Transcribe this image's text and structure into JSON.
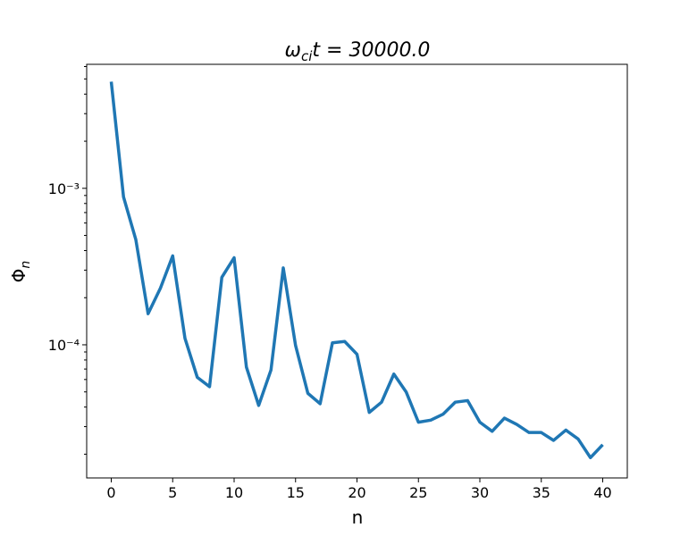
{
  "chart_data": {
    "type": "line",
    "title": {
      "symbol": "ω",
      "subscript": "ci",
      "rest": "t = 30000.0"
    },
    "x_label": "n",
    "y_label": {
      "symbol": "Φ",
      "subscript": "n"
    },
    "x": [
      0,
      1,
      2,
      3,
      4,
      5,
      6,
      7,
      8,
      9,
      10,
      11,
      12,
      13,
      14,
      15,
      16,
      17,
      18,
      19,
      20,
      21,
      22,
      23,
      24,
      25,
      26,
      27,
      28,
      29,
      30,
      31,
      32,
      33,
      34,
      35,
      36,
      37,
      38,
      39,
      40
    ],
    "series": [
      {
        "name": "Φn",
        "color": "#1f77b4",
        "values": [
          0.0048,
          0.00088,
          0.00047,
          0.000158,
          0.00023,
          0.00037,
          0.00011,
          6.2e-05,
          5.4e-05,
          0.00027,
          0.00036,
          7.2e-05,
          4.1e-05,
          6.9e-05,
          0.00031,
          9.9e-05,
          4.9e-05,
          4.2e-05,
          0.000103,
          0.000105,
          8.7e-05,
          3.7e-05,
          4.3e-05,
          6.5e-05,
          5e-05,
          3.2e-05,
          3.3e-05,
          3.6e-05,
          4.3e-05,
          4.4e-05,
          3.2e-05,
          2.8e-05,
          3.4e-05,
          3.1e-05,
          2.75e-05,
          2.75e-05,
          2.45e-05,
          2.85e-05,
          2.5e-05,
          1.9e-05,
          2.3e-05
        ]
      }
    ],
    "xlim": [
      -2,
      42
    ],
    "xticks": [
      0,
      5,
      10,
      15,
      20,
      25,
      30,
      35,
      40
    ],
    "ylim": [
      1.41e-05,
      0.0062
    ],
    "yscale": "log",
    "yticks": [
      {
        "value": 0.0001,
        "label": "10⁻⁴"
      },
      {
        "value": 0.001,
        "label": "10⁻³"
      }
    ],
    "yminorticks": [
      2e-05,
      3e-05,
      4e-05,
      5e-05,
      6e-05,
      7e-05,
      8e-05,
      9e-05,
      0.0002,
      0.0003,
      0.0004,
      0.0005,
      0.0006,
      0.0007,
      0.0008,
      0.0009,
      0.002,
      0.003,
      0.004,
      0.005,
      0.006
    ],
    "grid": false
  }
}
